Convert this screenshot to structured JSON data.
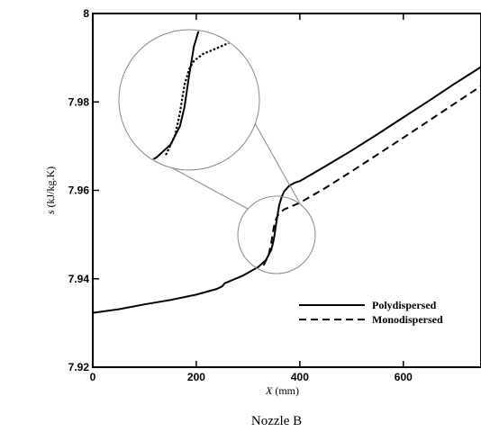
{
  "chart_data": {
    "type": "line",
    "title": "",
    "caption": "Nozzle B",
    "xlabel_var": "X",
    "xlabel_unit": " (mm)",
    "ylabel_var": "s",
    "ylabel_unit": " (kJ/kg.K)",
    "xlim": [
      0,
      750
    ],
    "ylim": [
      7.92,
      8.0
    ],
    "x_ticks": [
      0,
      200,
      400,
      600
    ],
    "x_tick_labels": [
      "0",
      "200",
      "400",
      "600"
    ],
    "y_ticks": [
      7.92,
      7.94,
      7.96,
      7.98,
      8.0
    ],
    "y_tick_labels": [
      "7.92",
      "7.94",
      "7.96",
      "7.98",
      "8"
    ],
    "grid": false,
    "legend_position": "lower-right",
    "series": [
      {
        "name": "Polydispersed",
        "style": "solid",
        "x": [
          0,
          50,
          100,
          150,
          200,
          240,
          250,
          255,
          290,
          320,
          335,
          345,
          350,
          355,
          360,
          365,
          370,
          380,
          390,
          400,
          450,
          500,
          550,
          600,
          650,
          700,
          750
        ],
        "y": [
          7.9323,
          7.9331,
          7.9342,
          7.9352,
          7.9364,
          7.9377,
          7.9383,
          7.939,
          7.9407,
          7.9427,
          7.9443,
          7.9466,
          7.949,
          7.953,
          7.9566,
          7.9586,
          7.9598,
          7.9611,
          7.9617,
          7.9621,
          7.9655,
          7.969,
          7.9727,
          7.9765,
          7.9803,
          7.9842,
          7.9879
        ]
      },
      {
        "name": "Monodispersed",
        "style": "dashed",
        "x": [
          330,
          340,
          345,
          350,
          355,
          360,
          370,
          380,
          400,
          450,
          500,
          550,
          600,
          650,
          700,
          750
        ],
        "y": [
          7.943,
          7.9455,
          7.9483,
          7.9518,
          7.9538,
          7.9548,
          7.9557,
          7.9562,
          7.9572,
          7.9606,
          7.9643,
          7.9681,
          7.9719,
          7.9758,
          7.9797,
          7.9836
        ]
      }
    ]
  }
}
